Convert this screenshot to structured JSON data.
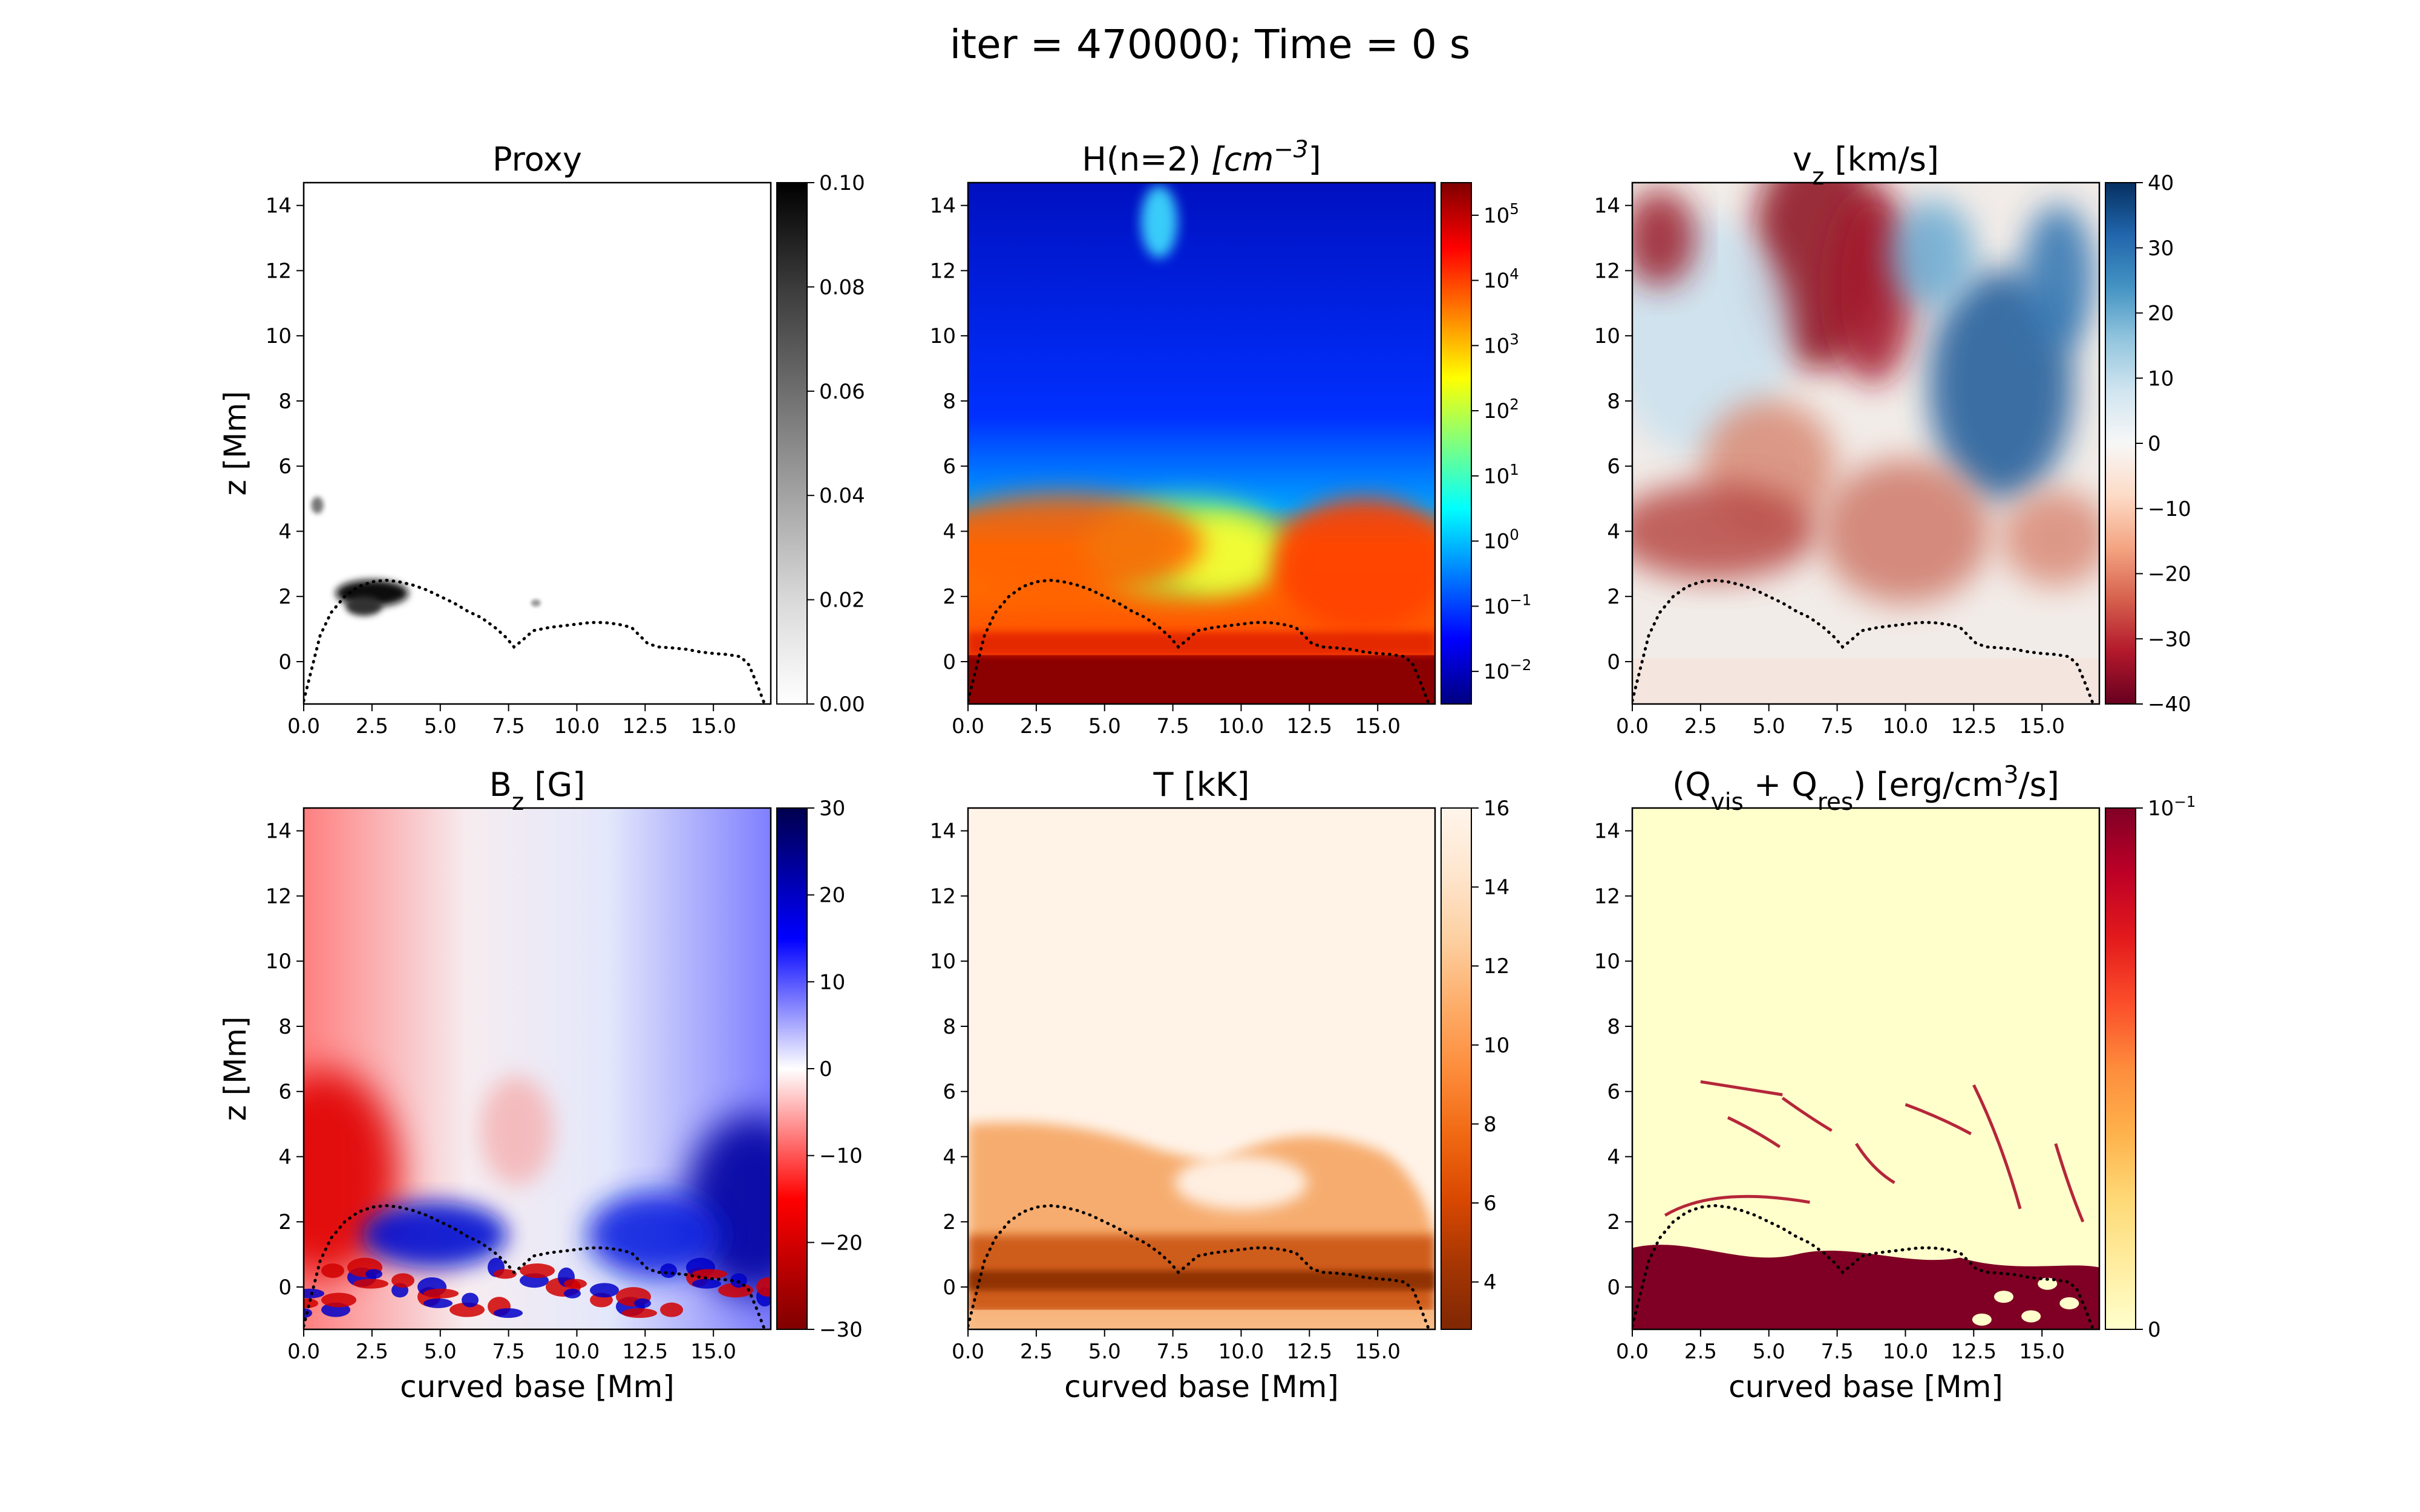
{
  "figure": {
    "suptitle": "iter = 470000; Time = 0 s"
  },
  "chart_data": [
    {
      "type": "heatmap",
      "id": "proxy",
      "title": [
        {
          "t": "Proxy"
        }
      ],
      "xlabel": "",
      "ylabel": "z [Mm]",
      "xlim": [
        0,
        17.1
      ],
      "ylim": [
        -1.3,
        14.7
      ],
      "xticks": [
        "0.0",
        "2.5",
        "5.0",
        "7.5",
        "10.0",
        "12.5",
        "15.0"
      ],
      "yticks": [
        "0",
        "2",
        "4",
        "6",
        "8",
        "10",
        "12",
        "14"
      ],
      "colormap": "Greys",
      "colorbar": {
        "scale": "linear",
        "min": 0,
        "max": 0.1,
        "ticks": [
          "0.00",
          "0.02",
          "0.04",
          "0.06",
          "0.08",
          "0.10"
        ]
      }
    },
    {
      "type": "heatmap",
      "id": "hn2",
      "title": [
        {
          "t": "H(n=2) "
        },
        {
          "t": "[cm",
          "italic": true
        },
        {
          "t": "−3",
          "sup": true,
          "italic": true
        },
        {
          "t": "]"
        }
      ],
      "xlabel": "",
      "ylabel": "",
      "xlim": [
        0,
        17.1
      ],
      "ylim": [
        -1.3,
        14.7
      ],
      "xticks": [
        "0.0",
        "2.5",
        "5.0",
        "7.5",
        "10.0",
        "12.5",
        "15.0"
      ],
      "yticks": [
        "0",
        "2",
        "4",
        "6",
        "8",
        "10",
        "12",
        "14"
      ],
      "colormap": "jet",
      "colorbar": {
        "scale": "log",
        "min": -2.5,
        "max": 5.5,
        "ticks": [
          {
            "b": "10",
            "e": "−2"
          },
          {
            "b": "10",
            "e": "−1"
          },
          {
            "b": "10",
            "e": "0"
          },
          {
            "b": "10",
            "e": "1"
          },
          {
            "b": "10",
            "e": "2"
          },
          {
            "b": "10",
            "e": "3"
          },
          {
            "b": "10",
            "e": "4"
          },
          {
            "b": "10",
            "e": "5"
          }
        ]
      }
    },
    {
      "type": "heatmap",
      "id": "vz",
      "title": [
        {
          "t": "v"
        },
        {
          "t": "z",
          "sub": true
        },
        {
          "t": " [km/s]"
        }
      ],
      "xlabel": "",
      "ylabel": "",
      "xlim": [
        0,
        17.1
      ],
      "ylim": [
        -1.3,
        14.7
      ],
      "xticks": [
        "0.0",
        "2.5",
        "5.0",
        "7.5",
        "10.0",
        "12.5",
        "15.0"
      ],
      "yticks": [
        "0",
        "2",
        "4",
        "6",
        "8",
        "10",
        "12",
        "14"
      ],
      "colormap": "RdBu",
      "colorbar": {
        "scale": "linear",
        "min": -40,
        "max": 40,
        "ticks": [
          "−40",
          "−30",
          "−20",
          "−10",
          "0",
          "10",
          "20",
          "30",
          "40"
        ]
      }
    },
    {
      "type": "heatmap",
      "id": "bz",
      "title": [
        {
          "t": "B"
        },
        {
          "t": "z",
          "sub": true
        },
        {
          "t": " [G]"
        }
      ],
      "xlabel": "curved base [Mm]",
      "ylabel": "z [Mm]",
      "xlim": [
        0,
        17.1
      ],
      "ylim": [
        -1.3,
        14.7
      ],
      "xticks": [
        "0.0",
        "2.5",
        "5.0",
        "7.5",
        "10.0",
        "12.5",
        "15.0"
      ],
      "yticks": [
        "0",
        "2",
        "4",
        "6",
        "8",
        "10",
        "12",
        "14"
      ],
      "colormap": "seismic_r",
      "colorbar": {
        "scale": "linear",
        "min": -30,
        "max": 30,
        "ticks": [
          "−30",
          "−20",
          "−10",
          "0",
          "10",
          "20",
          "30"
        ]
      }
    },
    {
      "type": "heatmap",
      "id": "temp",
      "title": [
        {
          "t": "T [kK]"
        }
      ],
      "xlabel": "curved base [Mm]",
      "ylabel": "",
      "xlim": [
        0,
        17.1
      ],
      "ylim": [
        -1.3,
        14.7
      ],
      "xticks": [
        "0.0",
        "2.5",
        "5.0",
        "7.5",
        "10.0",
        "12.5",
        "15.0"
      ],
      "yticks": [
        "0",
        "2",
        "4",
        "6",
        "8",
        "10",
        "12",
        "14"
      ],
      "colormap": "Oranges_r",
      "colorbar": {
        "scale": "linear",
        "min": 2.8,
        "max": 16,
        "ticks": [
          "4",
          "6",
          "8",
          "10",
          "12",
          "14",
          "16"
        ]
      }
    },
    {
      "type": "heatmap",
      "id": "qheat",
      "title": [
        {
          "t": "(Q"
        },
        {
          "t": "vis",
          "sub": true
        },
        {
          "t": " + Q"
        },
        {
          "t": "res",
          "sub": true
        },
        {
          "t": ") [erg/cm"
        },
        {
          "t": "3",
          "sup": true
        },
        {
          "t": "/s]"
        }
      ],
      "xlabel": "curved base [Mm]",
      "ylabel": "",
      "xlim": [
        0,
        17.1
      ],
      "ylim": [
        -1.3,
        14.7
      ],
      "xticks": [
        "0.0",
        "2.5",
        "5.0",
        "7.5",
        "10.0",
        "12.5",
        "15.0"
      ],
      "yticks": [
        "0",
        "2",
        "4",
        "6",
        "8",
        "10",
        "12",
        "14"
      ],
      "colormap": "YlOrRd",
      "colorbar": {
        "scale": "linear",
        "min": 0,
        "max": 0.1,
        "ticks": [
          {
            "t": "0",
            "v": 0
          },
          {
            "b": "10",
            "e": "−1",
            "v": 0.1
          }
        ]
      }
    }
  ],
  "loop_trace": {
    "style": "dotted",
    "x": [
      0.0,
      0.3,
      0.6,
      1.0,
      1.5,
      2.0,
      2.5,
      3.0,
      3.5,
      4.0,
      4.5,
      5.0,
      5.5,
      6.0,
      6.5,
      7.0,
      7.4,
      7.7,
      8.0,
      8.4,
      9.0,
      9.5,
      10.0,
      10.5,
      11.0,
      11.5,
      12.0,
      12.3,
      12.6,
      13.0,
      13.5,
      14.0,
      14.5,
      15.0,
      15.5,
      16.0,
      16.3,
      16.6,
      16.85
    ],
    "z": [
      -1.2,
      -0.2,
      0.8,
      1.5,
      2.0,
      2.3,
      2.45,
      2.5,
      2.45,
      2.35,
      2.2,
      2.0,
      1.8,
      1.55,
      1.35,
      1.05,
      0.75,
      0.45,
      0.65,
      0.95,
      1.05,
      1.1,
      1.15,
      1.2,
      1.2,
      1.15,
      1.05,
      0.8,
      0.55,
      0.45,
      0.42,
      0.38,
      0.3,
      0.25,
      0.22,
      0.15,
      -0.1,
      -0.7,
      -1.25
    ]
  }
}
